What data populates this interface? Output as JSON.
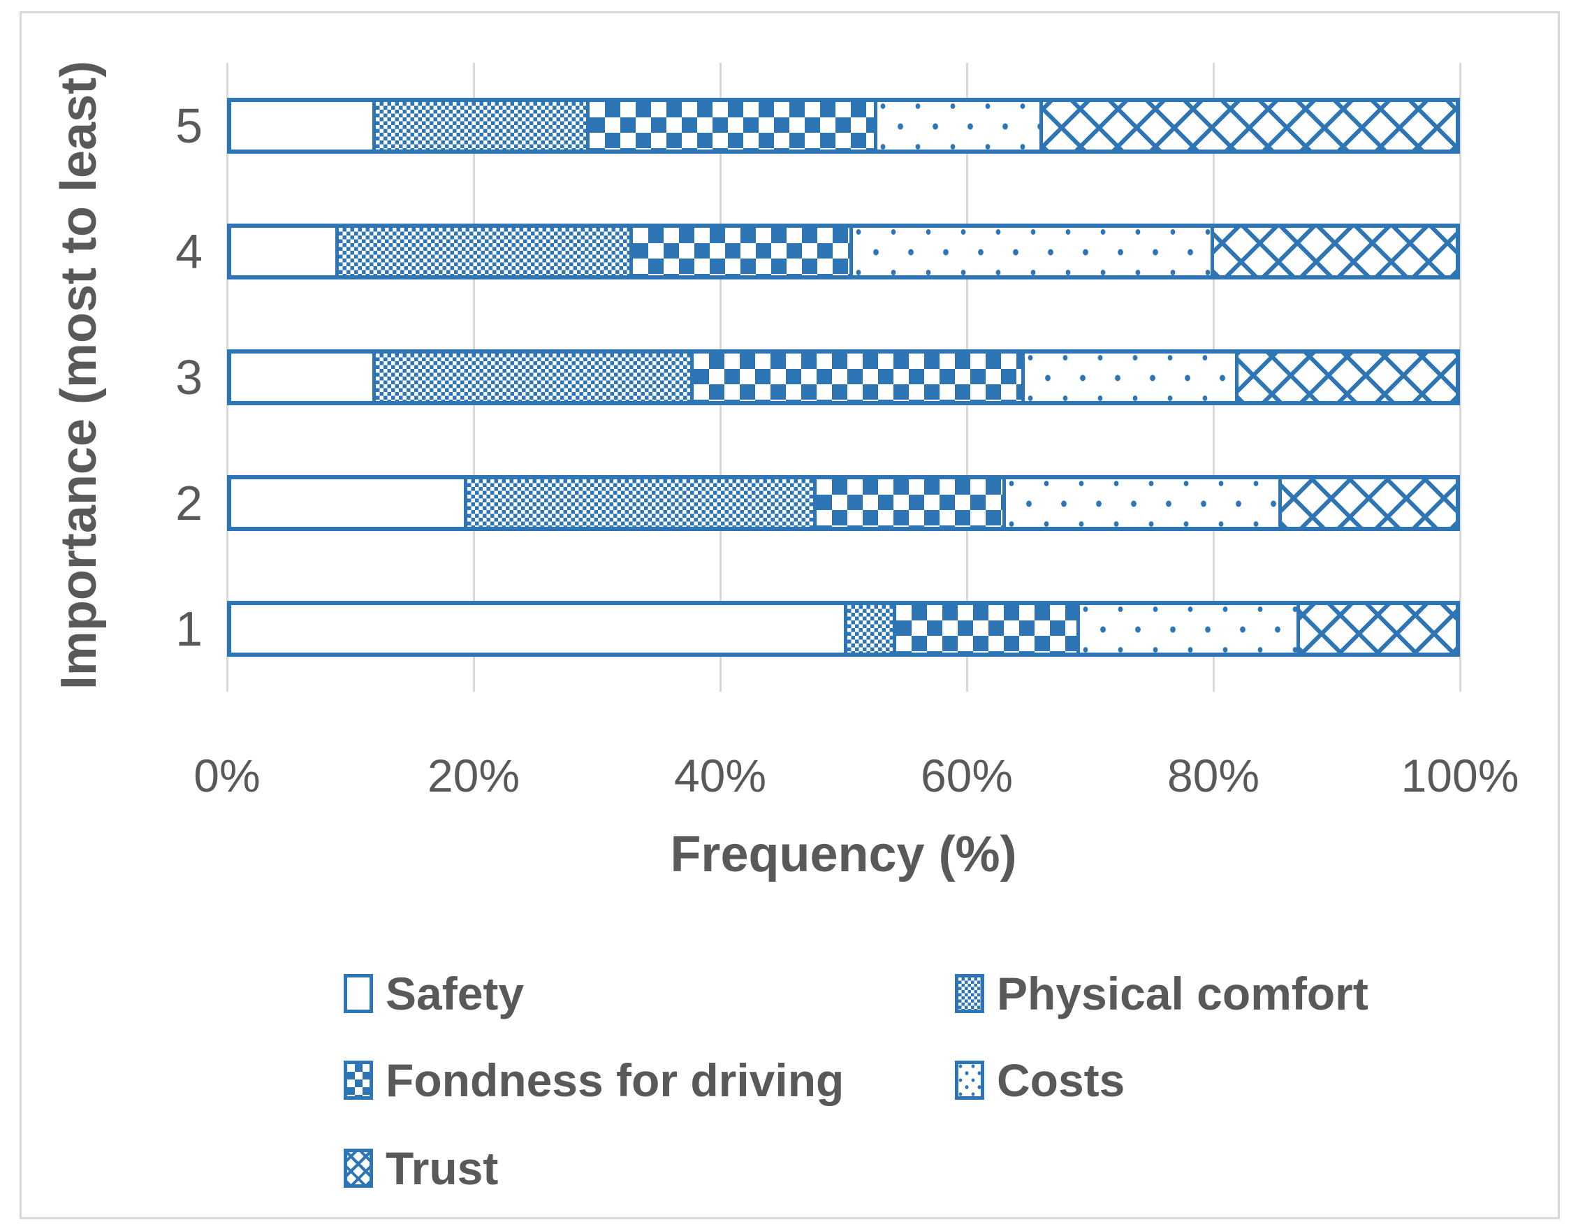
{
  "colors": {
    "accent": "#2E75B6",
    "grid": "#D9D9D9",
    "text": "#595959"
  },
  "chart_data": {
    "type": "bar",
    "orientation": "horizontal",
    "stacked": true,
    "xlabel": "Frequency (%)",
    "ylabel": "Importance (most to least)",
    "categories": [
      "5",
      "4",
      "3",
      "2",
      "1"
    ],
    "x_ticks": [
      "0%",
      "20%",
      "40%",
      "60%",
      "80%",
      "100%"
    ],
    "xlim": [
      0,
      100
    ],
    "grid": "vertical",
    "legend_position": "bottom",
    "series": [
      {
        "name": "Safety",
        "pattern": "plain",
        "values": [
          11.5,
          8.5,
          11.5,
          19,
          50
        ]
      },
      {
        "name": "Physical comfort",
        "pattern": "dense-checker",
        "values": [
          17.5,
          24,
          26,
          28.5,
          4
        ]
      },
      {
        "name": "Fondness for driving",
        "pattern": "checkerboard",
        "values": [
          23.5,
          18,
          27,
          15.5,
          15
        ]
      },
      {
        "name": "Costs",
        "pattern": "sparse-dots",
        "values": [
          13.5,
          29.5,
          17.5,
          22.5,
          18
        ]
      },
      {
        "name": "Trust",
        "pattern": "diagonal-crosshatch",
        "values": [
          34,
          20,
          18,
          14.5,
          13
        ]
      }
    ]
  }
}
